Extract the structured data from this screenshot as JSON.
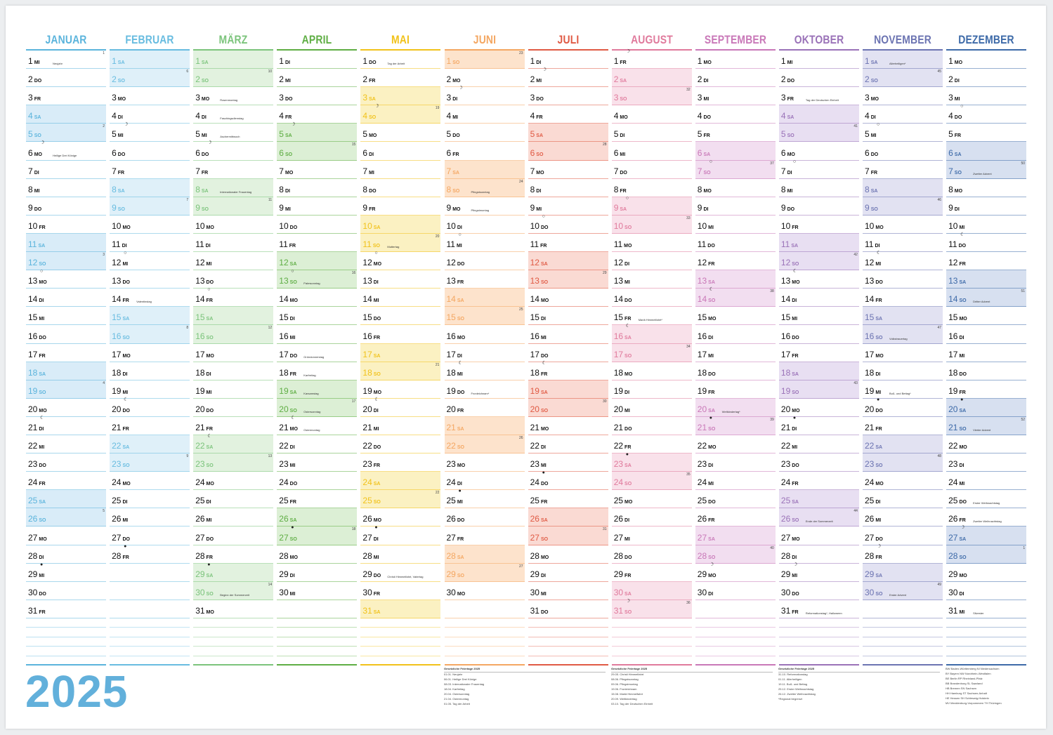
{
  "year": "2025",
  "weekdays": [
    "MO",
    "DI",
    "MI",
    "DO",
    "FR",
    "SA",
    "SO"
  ],
  "colors": {
    "year": "#62b0db",
    "months": [
      "#5bb4dc",
      "#68bce0",
      "#7cc47c",
      "#5fae44",
      "#f1c21a",
      "#f4a762",
      "#e05a44",
      "#e07a9c",
      "#c978b8",
      "#9a72b8",
      "#6c74b2",
      "#3d6aa8"
    ],
    "weekend_bg": [
      "#d9ecf8",
      "#dff0f9",
      "#e2f2df",
      "#dcefd5",
      "#fbf1c2",
      "#fde3cc",
      "#fadad3",
      "#f9e1ea",
      "#f2def0",
      "#e8dff2",
      "#e2e2f2",
      "#d7e0f0"
    ]
  },
  "months": [
    {
      "name": "JANUAR",
      "days": 31,
      "start": 2
    },
    {
      "name": "FEBRUAR",
      "days": 28,
      "start": 5
    },
    {
      "name": "MÄRZ",
      "days": 31,
      "start": 5
    },
    {
      "name": "APRIL",
      "days": 30,
      "start": 1
    },
    {
      "name": "MAI",
      "days": 31,
      "start": 3
    },
    {
      "name": "JUNI",
      "days": 30,
      "start": 6
    },
    {
      "name": "JULI",
      "days": 31,
      "start": 1
    },
    {
      "name": "AUGUST",
      "days": 31,
      "start": 4
    },
    {
      "name": "SEPTEMBER",
      "days": 30,
      "start": 0
    },
    {
      "name": "OKTOBER",
      "days": 31,
      "start": 2
    },
    {
      "name": "NOVEMBER",
      "days": 30,
      "start": 5
    },
    {
      "name": "DEZEMBER",
      "days": 31,
      "start": 0
    }
  ],
  "holidays": {
    "0-1": "Neujahr",
    "0-6": "Heilige Drei Könige",
    "1-14": "Valentinstag",
    "2-3": "Rosenmontag",
    "2-4": "Faschingsdienstag",
    "2-5": "Aschermittwoch",
    "2-8": "Internationaler Frauentag",
    "2-30": "Beginn der Sommerzeit",
    "3-13": "Palmsonntag",
    "3-17": "Gründonnerstag",
    "3-18": "Karfreitag",
    "3-19": "Karsamstag",
    "3-20": "Ostersonntag",
    "3-21": "Ostermontag",
    "4-1": "Tag der Arbeit",
    "4-11": "Muttertag",
    "4-29": "Christi Himmelfahrt, Vatertag",
    "5-8": "Pfingstsonntag",
    "5-9": "Pfingstmontag",
    "5-19": "Fronleichnam*",
    "7-15": "Mariä Himmelfahrt*",
    "8-20": "Weltkindertag*",
    "9-3": "Tag der Deutschen Einheit",
    "9-26": "Ende der Sommerzeit",
    "9-31": "Reformationstag*, Halloween",
    "10-1": "Allerheiligen*",
    "10-16": "Volkstrauertag",
    "10-19": "Buß- und Bettag*",
    "10-30": "Erster Advent",
    "11-7": "Zweiter Advent",
    "11-14": "Dritter Advent",
    "11-21": "Vierter Advent",
    "11-25": "Erster Weihnachtstag",
    "11-26": "Zweiter Weihnachtstag",
    "11-31": "Silvester"
  },
  "week_numbers": {
    "0-1": "1",
    "0-5": "2",
    "0-12": "3",
    "0-19": "4",
    "0-26": "5",
    "1-2": "6",
    "1-9": "7",
    "1-16": "8",
    "1-23": "9",
    "2-2": "10",
    "2-9": "11",
    "2-16": "12",
    "2-23": "13",
    "2-30": "14",
    "3-6": "15",
    "3-13": "16",
    "3-20": "17",
    "3-27": "18",
    "4-4": "19",
    "4-11": "20",
    "4-18": "21",
    "4-25": "22",
    "5-1": "23",
    "5-8": "24",
    "5-15": "25",
    "5-22": "26",
    "5-29": "27",
    "6-6": "28",
    "6-13": "29",
    "6-20": "30",
    "6-27": "31",
    "7-3": "32",
    "7-10": "33",
    "7-17": "34",
    "7-24": "35",
    "7-31": "36",
    "8-7": "37",
    "8-14": "38",
    "8-21": "39",
    "8-28": "40",
    "9-5": "41",
    "9-12": "42",
    "9-19": "43",
    "9-26": "44",
    "10-2": "45",
    "10-9": "46",
    "10-16": "47",
    "10-23": "48",
    "10-30": "49",
    "11-7": "50",
    "11-14": "51",
    "11-21": "52",
    "11-28": "1"
  },
  "moons": {
    "0-6": "☽",
    "0-13": "○",
    "0-21": "☾",
    "0-29": "●",
    "1-5": "☽",
    "1-12": "○",
    "1-20": "☾",
    "1-28": "●",
    "2-6": "☽",
    "2-14": "○",
    "2-22": "☾",
    "2-29": "●",
    "3-5": "☽",
    "3-13": "○",
    "3-21": "☾",
    "3-27": "●",
    "4-4": "☽",
    "4-12": "○",
    "4-20": "☾",
    "4-27": "●",
    "5-3": "☽",
    "5-11": "○",
    "5-18": "☾",
    "5-25": "●",
    "6-2": "☽",
    "6-10": "○",
    "6-18": "☾",
    "6-24": "●",
    "7-1": "☽",
    "7-9": "○",
    "7-16": "☾",
    "7-23": "●",
    "7-31": "☽",
    "8-7": "○",
    "8-14": "☾",
    "8-21": "●",
    "8-29": "☽",
    "9-7": "○",
    "9-13": "☾",
    "9-21": "●",
    "9-29": "☽",
    "10-5": "○",
    "10-12": "☾",
    "10-20": "●",
    "10-28": "☽",
    "11-4": "○",
    "11-11": "☾",
    "11-20": "●",
    "11-27": "☽"
  },
  "holiday_tables": [
    {
      "title": "Gesetzliche Feiertage 2025",
      "rows": [
        "01.01. Neujahr",
        "06.01. Heilige Drei Könige",
        "08.03. Internationaler Frauentag",
        "18.04. Karfreitag",
        "20.04. Ostersonntag",
        "21.04. Ostermontag",
        "01.05. Tag der Arbeit"
      ]
    },
    {
      "title": "Gesetzliche Feiertage 2025",
      "rows": [
        "29.05. Christi Himmelfahrt",
        "08.06. Pfingstsonntag",
        "09.06. Pfingstmontag",
        "19.06. Fronleichnam",
        "15.08. Mariä Himmelfahrt",
        "20.09. Weltkindertag",
        "03.10. Tag der Deutschen Einheit"
      ]
    },
    {
      "title": "Gesetzliche Feiertage 2025",
      "rows": [
        "31.10. Reformationstag",
        "01.11. Allerheiligen",
        "19.11. Buß- und Bettag",
        "25.12. Erster Weihnachtstag",
        "26.12. Zweiter Weihnachtstag",
        "*Regional begrenzt"
      ]
    },
    {
      "title": "",
      "rows": [
        "BW Baden-Württemberg   NI Niedersachsen",
        "BY Bayern   NW Nordrhein-Westfalen",
        "BE Berlin   RP Rheinland-Pfalz",
        "BB Brandenburg   SL Saarland",
        "HB Bremen   SN Sachsen",
        "HH Hamburg   ST Sachsen-Anhalt",
        "HE Hessen   SH Schleswig-Holstein",
        "MV Mecklenburg-Vorpommern   TH Thüringen"
      ]
    }
  ]
}
